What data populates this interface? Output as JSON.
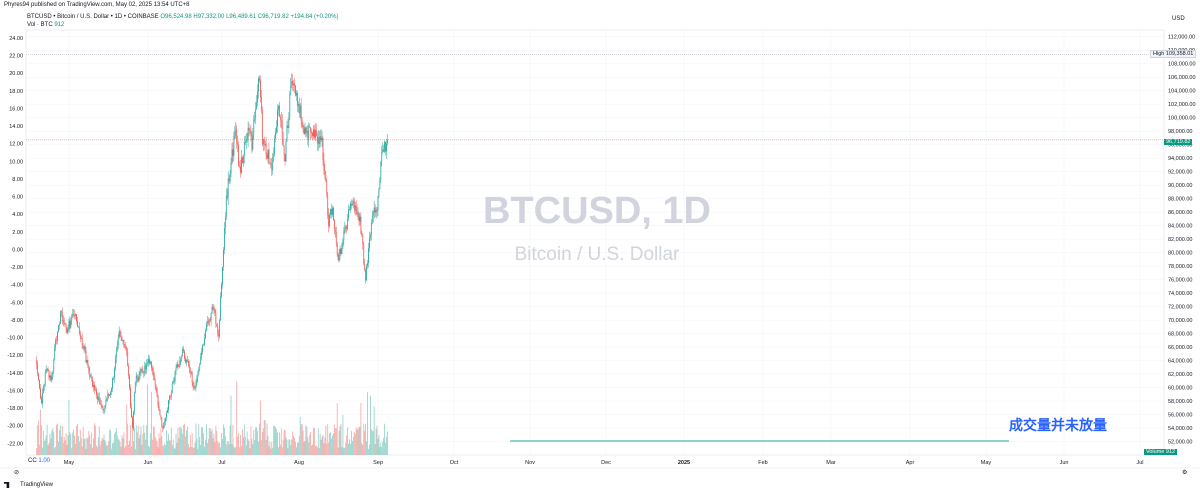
{
  "header": {
    "published": "Phyres94 published on TradingView.com, May 02, 2025 13:54 UTC+8",
    "symbol_line": "BTCUSD • Bitcoin / U.S. Dollar • 1D • COINBASE",
    "ohlc": "O96,524.98 H97,332.00 L96,489.61 C96,719.82 +194.84 (+0.20%)",
    "vol_label": "Vol · BTC",
    "vol_value": "912",
    "cc_label": "CC",
    "cc_value": "1.00",
    "currency": "USD"
  },
  "watermark": {
    "title": "BTCUSD, 1D",
    "subtitle": "Bitcoin / U.S. Dollar"
  },
  "annotation": "成交量并未放量",
  "footer": {
    "logo": "TradingView"
  },
  "tags": {
    "high_label": "High",
    "high_value": "109,358.01",
    "price": "96,719.82",
    "volume_label": "Volume",
    "volume_value": "912"
  },
  "colors": {
    "up": "#26a69a",
    "down": "#ef5350",
    "vol_up": "#8fd0c8",
    "vol_down": "#f5a6a4",
    "annotation": "#2962ff",
    "grid": "#f0f3fa",
    "hline": "#26a69a"
  },
  "chart_data": {
    "type": "candlestick",
    "right_axis": {
      "label": "USD",
      "ticks": [
        "112,000.00",
        "110,000.00",
        "108,000.00",
        "106,000.00",
        "104,000.00",
        "102,000.00",
        "100,000.00",
        "98,000.00",
        "96,000.00",
        "94,000.00",
        "92,000.00",
        "90,000.00",
        "88,000.00",
        "86,000.00",
        "84,000.00",
        "82,000.00",
        "80,000.00",
        "78,000.00",
        "76,000.00",
        "74,000.00",
        "72,000.00",
        "70,000.00",
        "68,000.00",
        "66,000.00",
        "64,000.00",
        "62,000.00",
        "60,000.00",
        "58,000.00",
        "56,000.00",
        "54,000.00",
        "52,000.00"
      ],
      "range": [
        50000,
        113000
      ]
    },
    "left_axis": {
      "ticks": [
        "24.00",
        "22.00",
        "20.00",
        "18.00",
        "16.00",
        "14.00",
        "12.00",
        "10.00",
        "8.00",
        "6.00",
        "4.00",
        "2.00",
        "0.00",
        "-2.00",
        "-4.00",
        "-6.00",
        "-8.00",
        "-10.00",
        "-12.00",
        "-14.00",
        "-16.00",
        "-18.00",
        "-20.00",
        "-22.00"
      ]
    },
    "x_labels": [
      "May",
      "Jun",
      "Jul",
      "Aug",
      "Sep",
      "Oct",
      "Nov",
      "Dec",
      "2025",
      "Feb",
      "Mar",
      "Apr",
      "May",
      "Jun",
      "Jul"
    ],
    "price_path": [
      {
        "date": "2024-04-26",
        "close": 64000
      },
      {
        "date": "2024-05-01",
        "close": 57500
      },
      {
        "date": "2024-05-06",
        "close": 63000
      },
      {
        "date": "2024-05-12",
        "close": 61000
      },
      {
        "date": "2024-05-15",
        "close": 66000
      },
      {
        "date": "2024-05-21",
        "close": 71000
      },
      {
        "date": "2024-05-27",
        "close": 68500
      },
      {
        "date": "2024-06-05",
        "close": 71000
      },
      {
        "date": "2024-06-07",
        "close": 69500
      },
      {
        "date": "2024-06-14",
        "close": 66000
      },
      {
        "date": "2024-06-24",
        "close": 60500
      },
      {
        "date": "2024-07-05",
        "close": 56500
      },
      {
        "date": "2024-07-14",
        "close": 60000
      },
      {
        "date": "2024-07-22",
        "close": 68000
      },
      {
        "date": "2024-07-29",
        "close": 66500
      },
      {
        "date": "2024-08-05",
        "close": 54000
      },
      {
        "date": "2024-08-08",
        "close": 61000
      },
      {
        "date": "2024-08-24",
        "close": 64000
      },
      {
        "date": "2024-09-06",
        "close": 54000
      },
      {
        "date": "2024-09-18",
        "close": 61500
      },
      {
        "date": "2024-09-27",
        "close": 65500
      },
      {
        "date": "2024-10-10",
        "close": 60000
      },
      {
        "date": "2024-10-21",
        "close": 68500
      },
      {
        "date": "2024-10-29",
        "close": 72000
      },
      {
        "date": "2024-11-04",
        "close": 67800
      },
      {
        "date": "2024-11-12",
        "close": 88000
      },
      {
        "date": "2024-11-22",
        "close": 98500
      },
      {
        "date": "2024-11-26",
        "close": 92000
      },
      {
        "date": "2024-12-05",
        "close": 98500
      },
      {
        "date": "2024-12-09",
        "close": 96000
      },
      {
        "date": "2024-12-17",
        "close": 106500
      },
      {
        "date": "2024-12-20",
        "close": 97000
      },
      {
        "date": "2024-12-30",
        "close": 92500
      },
      {
        "date": "2025-01-06",
        "close": 102000
      },
      {
        "date": "2025-01-13",
        "close": 94500
      },
      {
        "date": "2025-01-20",
        "close": 106000
      },
      {
        "date": "2025-01-27",
        "close": 102000
      },
      {
        "date": "2025-02-03",
        "close": 98000
      },
      {
        "date": "2025-02-21",
        "close": 96500
      },
      {
        "date": "2025-02-28",
        "close": 84500
      },
      {
        "date": "2025-03-04",
        "close": 87000
      },
      {
        "date": "2025-03-10",
        "close": 78500
      },
      {
        "date": "2025-03-24",
        "close": 87500
      },
      {
        "date": "2025-04-02",
        "close": 85000
      },
      {
        "date": "2025-04-08",
        "close": 76300
      },
      {
        "date": "2025-04-14",
        "close": 84500
      },
      {
        "date": "2025-04-21",
        "close": 87500
      },
      {
        "date": "2025-04-25",
        "close": 94500
      },
      {
        "date": "2025-05-01",
        "close": 96700
      }
    ],
    "high": 109358.01,
    "last_price": 96719.82,
    "last_volume": 912
  }
}
